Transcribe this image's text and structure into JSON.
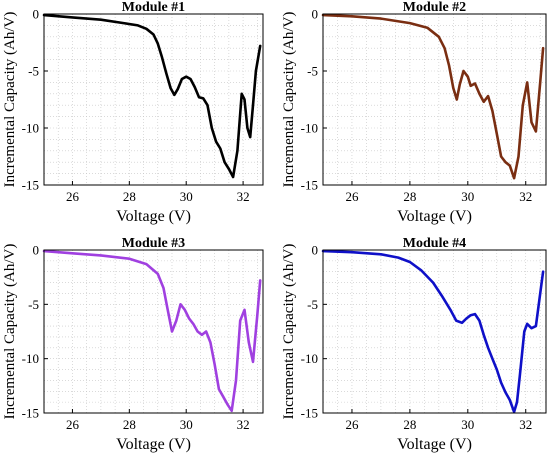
{
  "chart_data": [
    {
      "type": "line",
      "title": "Module #1",
      "xlabel": "Voltage (V)",
      "ylabel": "Incremental Capacity (Ah/V)",
      "xlim": [
        25,
        32.7
      ],
      "ylim": [
        -15,
        0
      ],
      "xticks": [
        26,
        28,
        30,
        32
      ],
      "yticks": [
        0,
        -5,
        -10,
        -15
      ],
      "grid": true,
      "series": [
        {
          "color": "#000000",
          "x": [
            25.0,
            26.0,
            27.0,
            27.8,
            28.3,
            28.6,
            28.85,
            29.0,
            29.15,
            29.3,
            29.45,
            29.58,
            29.7,
            29.85,
            30.0,
            30.15,
            30.3,
            30.45,
            30.6,
            30.75,
            30.9,
            31.05,
            31.2,
            31.35,
            31.5,
            31.65,
            31.8,
            31.95,
            32.05,
            32.15,
            32.25,
            32.35,
            32.45,
            32.6
          ],
          "y": [
            -0.1,
            -0.3,
            -0.5,
            -0.8,
            -1.0,
            -1.3,
            -1.8,
            -2.6,
            -3.8,
            -5.2,
            -6.5,
            -7.1,
            -6.6,
            -5.7,
            -5.5,
            -5.7,
            -6.4,
            -7.3,
            -7.4,
            -8.0,
            -10.0,
            -11.2,
            -11.8,
            -13.0,
            -13.6,
            -14.3,
            -12.0,
            -7.0,
            -7.5,
            -10.0,
            -10.8,
            -8.0,
            -5.0,
            -2.8
          ]
        }
      ]
    },
    {
      "type": "line",
      "title": "Module #2",
      "xlabel": "Voltage (V)",
      "ylabel": "Incremental Capacity (Ah/V)",
      "xlim": [
        25,
        32.7
      ],
      "ylim": [
        -15,
        0
      ],
      "xticks": [
        26,
        28,
        30,
        32
      ],
      "yticks": [
        0,
        -5,
        -10,
        -15
      ],
      "grid": true,
      "series": [
        {
          "color": "#7a2e12",
          "x": [
            25.0,
            26.0,
            27.0,
            28.0,
            28.6,
            29.0,
            29.2,
            29.35,
            29.5,
            29.62,
            29.72,
            29.85,
            30.0,
            30.1,
            30.25,
            30.4,
            30.55,
            30.7,
            30.85,
            31.0,
            31.15,
            31.3,
            31.45,
            31.6,
            31.75,
            31.9,
            32.05,
            32.2,
            32.35,
            32.5,
            32.6
          ],
          "y": [
            -0.1,
            -0.2,
            -0.4,
            -0.8,
            -1.2,
            -2.0,
            -3.0,
            -4.5,
            -6.5,
            -7.5,
            -6.2,
            -5.0,
            -5.5,
            -6.3,
            -6.1,
            -7.0,
            -7.7,
            -7.2,
            -8.5,
            -10.5,
            -12.5,
            -13.0,
            -13.3,
            -14.4,
            -12.5,
            -8.0,
            -6.0,
            -9.5,
            -10.3,
            -6.0,
            -3.0
          ]
        }
      ]
    },
    {
      "type": "line",
      "title": "Module #3",
      "xlabel": "Voltage (V)",
      "ylabel": "Incremental Capacity (Ah/V)",
      "xlim": [
        25,
        32.7
      ],
      "ylim": [
        -15,
        0
      ],
      "xticks": [
        26,
        28,
        30,
        32
      ],
      "yticks": [
        0,
        -5,
        -10,
        -15
      ],
      "grid": true,
      "series": [
        {
          "color": "#a040e0",
          "x": [
            25.0,
            26.0,
            27.0,
            28.0,
            28.6,
            29.0,
            29.2,
            29.35,
            29.5,
            29.65,
            29.8,
            29.95,
            30.1,
            30.25,
            30.4,
            30.55,
            30.7,
            30.85,
            31.0,
            31.15,
            31.3,
            31.45,
            31.6,
            31.75,
            31.9,
            32.05,
            32.2,
            32.35,
            32.5,
            32.6
          ],
          "y": [
            -0.1,
            -0.3,
            -0.5,
            -0.8,
            -1.3,
            -2.2,
            -3.5,
            -5.5,
            -7.5,
            -6.5,
            -5.0,
            -5.5,
            -6.3,
            -6.8,
            -7.5,
            -7.8,
            -7.5,
            -8.5,
            -10.5,
            -12.8,
            -13.5,
            -14.2,
            -14.8,
            -12.0,
            -6.5,
            -5.5,
            -8.5,
            -10.3,
            -6.0,
            -2.8
          ]
        }
      ]
    },
    {
      "type": "line",
      "title": "Module #4",
      "xlabel": "Voltage (V)",
      "ylabel": "Incremental Capacity (Ah/V)",
      "xlim": [
        25,
        32.7
      ],
      "ylim": [
        -15,
        0
      ],
      "xticks": [
        26,
        28,
        30,
        32
      ],
      "yticks": [
        0,
        -5,
        -10,
        -15
      ],
      "grid": true,
      "series": [
        {
          "color": "#0f10c8",
          "x": [
            25.0,
            26.0,
            27.0,
            27.6,
            28.0,
            28.4,
            28.8,
            29.1,
            29.4,
            29.6,
            29.8,
            29.95,
            30.1,
            30.25,
            30.4,
            30.55,
            30.7,
            30.85,
            31.0,
            31.15,
            31.3,
            31.45,
            31.6,
            31.7,
            31.8,
            31.95,
            32.05,
            32.2,
            32.35,
            32.5,
            32.6
          ],
          "y": [
            -0.1,
            -0.2,
            -0.4,
            -0.7,
            -1.1,
            -1.9,
            -3.0,
            -4.2,
            -5.5,
            -6.5,
            -6.7,
            -6.3,
            -6.0,
            -5.9,
            -6.5,
            -7.8,
            -9.0,
            -10.0,
            -11.0,
            -12.2,
            -13.1,
            -13.8,
            -14.9,
            -14.0,
            -11.5,
            -7.5,
            -6.8,
            -7.2,
            -7.0,
            -4.0,
            -2.0
          ]
        }
      ]
    }
  ]
}
